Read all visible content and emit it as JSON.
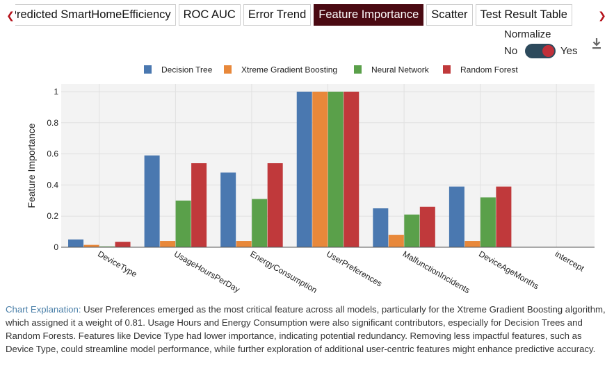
{
  "tabs": [
    {
      "label": "Predicted SmartHomeEfficiency",
      "active": false
    },
    {
      "label": "ROC AUC",
      "active": false
    },
    {
      "label": "Error Trend",
      "active": false
    },
    {
      "label": "Feature Importance",
      "active": true
    },
    {
      "label": "Scatter",
      "active": false
    },
    {
      "label": "Test Result Table",
      "active": false
    }
  ],
  "normalize": {
    "label": "Normalize",
    "off_label": "No",
    "on_label": "Yes",
    "value": true
  },
  "icons": {
    "prev": "chevron-left-icon",
    "next": "chevron-right-icon",
    "download": "download-icon"
  },
  "colors": {
    "accent": "#b5121b",
    "active_tab": "#4a0a12"
  },
  "chart_data": {
    "type": "bar",
    "ylabel": "Feature Importance",
    "xlabel": "",
    "ylim": [
      0,
      1.05
    ],
    "yticks": [
      "0",
      "0.2",
      "0.4",
      "0.6",
      "0.8",
      "1"
    ],
    "grid": true,
    "legend_position": "top",
    "categories": [
      "DeviceType",
      "UsageHoursPerDay",
      "EnergyConsumption",
      "UserPreferences",
      "MalfunctionIncidents",
      "DeviceAgeMonths",
      "intercept"
    ],
    "series": [
      {
        "name": "Decision Tree",
        "color": "#4a78b0",
        "values": [
          0.05,
          0.59,
          0.48,
          1.0,
          0.25,
          0.39,
          0
        ]
      },
      {
        "name": "Xtreme Gradient Boosting",
        "color": "#e8883a",
        "values": [
          0.015,
          0.04,
          0.04,
          1.0,
          0.08,
          0.04,
          0
        ]
      },
      {
        "name": "Neural Network",
        "color": "#5aa04a",
        "values": [
          0.005,
          0.3,
          0.31,
          1.0,
          0.21,
          0.32,
          0
        ]
      },
      {
        "name": "Random Forest",
        "color": "#c0393b",
        "values": [
          0.035,
          0.54,
          0.54,
          1.0,
          0.26,
          0.39,
          0
        ]
      }
    ]
  },
  "explanation": {
    "lead": "Chart Explanation:",
    "text": " User Preferences emerged as the most critical feature across all models, particularly for the Xtreme Gradient Boosting algorithm, which assigned it a weight of 0.81. Usage Hours and Energy Consumption were also significant contributors, especially for Decision Trees and Random Forests. Features like Device Type had lower importance, indicating potential redundancy. Removing less impactful features, such as Device Type, could streamline model performance, while further exploration of additional user-centric features might enhance predictive accuracy."
  }
}
